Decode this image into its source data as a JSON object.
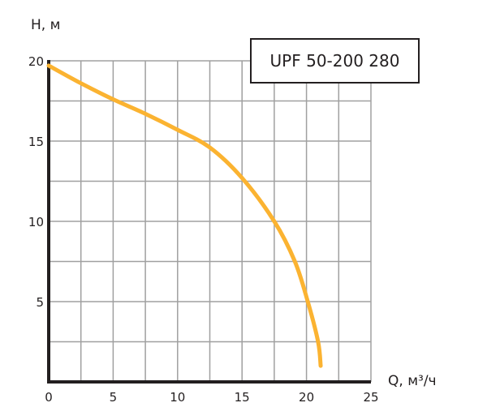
{
  "chart_data": {
    "type": "line",
    "title": "UPF 50-200 280",
    "xlabel": "Q, м³/ч",
    "ylabel": "H, м",
    "xlim": [
      0,
      25
    ],
    "ylim": [
      0,
      20
    ],
    "grid": true,
    "x_ticks": [
      "0",
      "5",
      "10",
      "15",
      "20",
      "25"
    ],
    "y_ticks": [
      "5",
      "10",
      "15",
      "20"
    ],
    "x_minor_step": 2.5,
    "y_minor_step": 2.5,
    "series": [
      {
        "name": "UPF 50-200 280",
        "color": "#fbb331",
        "x": [
          0,
          2.5,
          5,
          7.5,
          10,
          12.5,
          15,
          17.5,
          19.1,
          20.1,
          20.9,
          21.1
        ],
        "y": [
          19.7,
          18.6,
          17.6,
          16.7,
          15.7,
          14.6,
          12.7,
          10.0,
          7.5,
          5.0,
          2.5,
          1.0
        ]
      }
    ]
  },
  "colors": {
    "curve": "#fbb331",
    "grid": "#a0a0a0",
    "axis": "#231f20"
  }
}
